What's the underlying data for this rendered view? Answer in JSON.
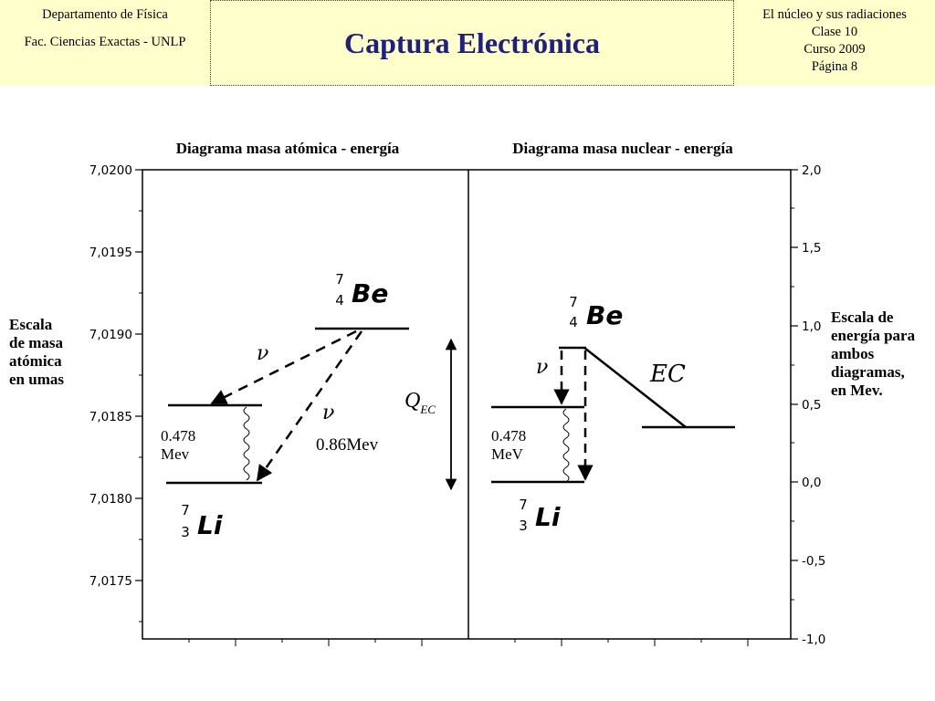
{
  "header": {
    "left": {
      "dept": "Departamento de Física",
      "faculty": "Fac. Ciencias Exactas - UNLP"
    },
    "title": "Captura Electrónica",
    "right": {
      "course_topic": "El núcleo y sus radiaciones",
      "class": "Clase 10",
      "year": "Curso 2009",
      "page": "Página 8"
    }
  },
  "diagram": {
    "atomic_title": "Diagrama masa atómica - energía",
    "nuclear_title": "Diagrama masa nuclear - energía",
    "left_axis": {
      "ticks": [
        "7,0200",
        "7,0195",
        "7,0190",
        "7,0185",
        "7,0180",
        "7,0175"
      ]
    },
    "right_axis": {
      "ticks": [
        "2,0",
        "1,5",
        "1,0",
        "0,5",
        "0,0",
        "-0,5",
        "-1,0"
      ]
    },
    "left_side_label": [
      "Escala",
      "de masa",
      "atómica",
      "en umas"
    ],
    "right_side_label": [
      "Escala de",
      "energía para",
      "ambos",
      "diagramas,",
      "en Mev."
    ],
    "atomic": {
      "be": {
        "mass": "7",
        "z": "4",
        "sym": "Be"
      },
      "li": {
        "mass": "7",
        "z": "3",
        "sym": "Li"
      },
      "nu1": "ν",
      "nu2": "ν",
      "gamma_e1": "0.478",
      "gamma_e2": "Mev",
      "q_value": "0.86Mev",
      "qec_q": "Q",
      "qec_sub": "EC"
    },
    "nuclear": {
      "be": {
        "mass": "7",
        "z": "4",
        "sym": "Be"
      },
      "li": {
        "mass": "7",
        "z": "3",
        "sym": "Li"
      },
      "nu": "ν",
      "ec": "EC",
      "gamma_e1": "0.478",
      "gamma_e2": "MeV"
    }
  }
}
